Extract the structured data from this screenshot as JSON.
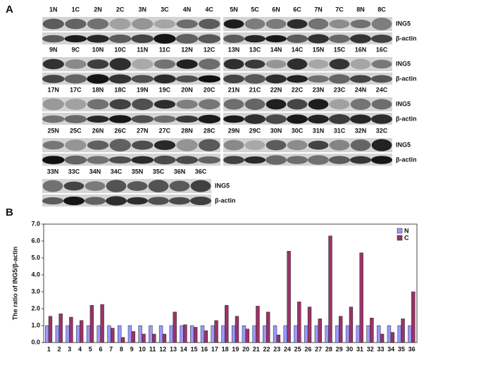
{
  "panel_a": {
    "label": "A",
    "rows": [
      {
        "blots": [
          [
            "1N",
            "1C",
            "2N",
            "2C",
            "3N",
            "3C",
            "4N",
            "4C"
          ],
          [
            "5N",
            "5C",
            "6N",
            "6C",
            "7N",
            "7C",
            "8N",
            "8C"
          ]
        ],
        "labels": [
          "ING5",
          "β-actin"
        ]
      },
      {
        "blots": [
          [
            "9N",
            "9C",
            "10N",
            "10C",
            "11N",
            "11C",
            "12N",
            "12C"
          ],
          [
            "13N",
            "13C",
            "14N",
            "14C",
            "15N",
            "15C",
            "16N",
            "16C"
          ]
        ],
        "labels": [
          "ING5",
          "β-actin"
        ]
      },
      {
        "blots": [
          [
            "17N",
            "17C",
            "18N",
            "18C",
            "19N",
            "19C",
            "20N",
            "20C"
          ],
          [
            "21N",
            "21C",
            "22N",
            "22C",
            "23N",
            "23C",
            "24N",
            "24C"
          ]
        ],
        "labels": [
          "ING5",
          "β-actin"
        ]
      },
      {
        "blots": [
          [
            "25N",
            "25C",
            "26N",
            "26C",
            "27N",
            "27C",
            "28N",
            "28C"
          ],
          [
            "29N",
            "29C",
            "30N",
            "30C",
            "31N",
            "31C",
            "32N",
            "32C"
          ]
        ],
        "labels": [
          "ING5",
          "β-actin"
        ]
      },
      {
        "blots": [
          [
            "33N",
            "33C",
            "34N",
            "34C",
            "35N",
            "35C",
            "36N",
            "36C"
          ]
        ],
        "labels": [
          "ING5",
          "β-actin"
        ]
      }
    ]
  },
  "chart_data": {
    "type": "bar",
    "panel_label": "B",
    "y_label": "The ratio of ING5/β-actin",
    "categories": [
      "1",
      "2",
      "3",
      "4",
      "5",
      "6",
      "7",
      "8",
      "9",
      "10",
      "11",
      "12",
      "13",
      "14",
      "15",
      "16",
      "17",
      "18",
      "19",
      "20",
      "21",
      "22",
      "23",
      "24",
      "25",
      "26",
      "27",
      "28",
      "29",
      "30",
      "31",
      "32",
      "33",
      "34",
      "35",
      "36"
    ],
    "series": [
      {
        "name": "N",
        "color": "#9999ff",
        "values": [
          1,
          1,
          1,
          1,
          1,
          1,
          1,
          1,
          1,
          1,
          1,
          1,
          1,
          1,
          1,
          1,
          1,
          1,
          1,
          1,
          1,
          1,
          1,
          1,
          1,
          1,
          1,
          1,
          1,
          1,
          1,
          1,
          1,
          1,
          1,
          1
        ]
      },
      {
        "name": "C",
        "color": "#993366",
        "values": [
          1.55,
          1.7,
          1.5,
          1.3,
          2.2,
          2.25,
          0.85,
          0.3,
          0.65,
          0.5,
          0.5,
          0.5,
          1.8,
          1.05,
          0.9,
          0.7,
          1.3,
          2.2,
          1.55,
          0.8,
          2.15,
          1.8,
          0.45,
          5.4,
          2.4,
          2.1,
          1.4,
          6.3,
          1.55,
          2.1,
          5.3,
          1.45,
          0.5,
          0.6,
          1.4,
          3.0
        ]
      }
    ],
    "ylim": [
      0,
      7
    ],
    "yticks": [
      {
        "value": 0,
        "label": "0.0"
      },
      {
        "value": 1,
        "label": "1.0"
      },
      {
        "value": 2,
        "label": "2.0"
      },
      {
        "value": 3,
        "label": "3.0"
      },
      {
        "value": 4,
        "label": "4.0"
      },
      {
        "value": 5,
        "label": "5.0"
      },
      {
        "value": 6,
        "label": "6.0"
      },
      {
        "value": 7,
        "label": "7.0"
      }
    ],
    "legend": "top-right"
  }
}
